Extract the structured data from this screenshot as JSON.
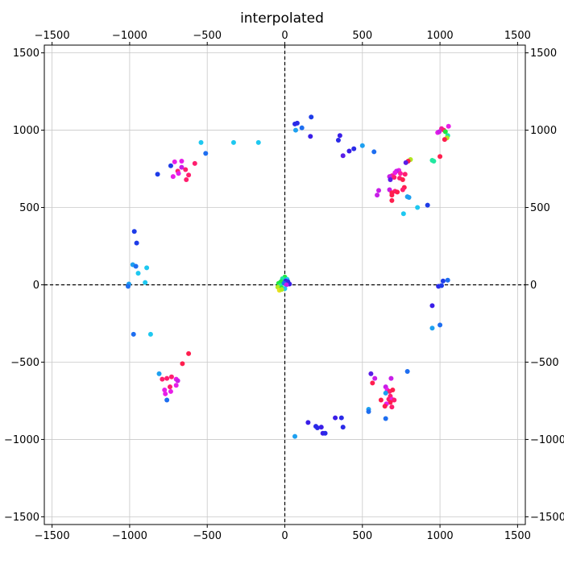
{
  "chart_data": {
    "type": "scatter",
    "title": "interpolated",
    "xlabel": "",
    "ylabel": "",
    "xlim": [
      -1550,
      1550
    ],
    "ylim": [
      -1550,
      1550
    ],
    "xticks": [
      -1500,
      -1000,
      -500,
      0,
      500,
      1000,
      1500
    ],
    "yticks": [
      -1500,
      -1000,
      -500,
      0,
      500,
      1000,
      1500
    ],
    "xtick_labels": [
      "−1500",
      "−1000",
      "−500",
      "0",
      "500",
      "1000",
      "1500"
    ],
    "ytick_labels": [
      "−1500",
      "−1000",
      "−500",
      "0",
      "500",
      "1000",
      "1500"
    ],
    "grid": true,
    "reference_lines": [
      {
        "axis": "x",
        "value": 0,
        "style": "dashed"
      },
      {
        "axis": "y",
        "value": 0,
        "style": "dashed"
      }
    ],
    "points": [
      {
        "x": 170,
        "y": 1085,
        "color": "#1e3ce8"
      },
      {
        "x": 65,
        "y": 1040,
        "color": "#2a2ae8"
      },
      {
        "x": 80,
        "y": 1045,
        "color": "#2a2ae8"
      },
      {
        "x": 110,
        "y": 1015,
        "color": "#1e6ef0"
      },
      {
        "x": 70,
        "y": 1000,
        "color": "#1ea0f0"
      },
      {
        "x": 165,
        "y": 960,
        "color": "#3a1ee8"
      },
      {
        "x": 355,
        "y": 965,
        "color": "#3a1ee8"
      },
      {
        "x": 345,
        "y": 935,
        "color": "#2a2ae8"
      },
      {
        "x": 375,
        "y": 835,
        "color": "#5a1ee8"
      },
      {
        "x": 415,
        "y": 865,
        "color": "#3a1ee8"
      },
      {
        "x": 445,
        "y": 880,
        "color": "#2a2ae8"
      },
      {
        "x": 500,
        "y": 900,
        "color": "#1ea0f0"
      },
      {
        "x": 575,
        "y": 860,
        "color": "#1e6ef0"
      },
      {
        "x": 1010,
        "y": 1010,
        "color": "#f01e9e"
      },
      {
        "x": 1025,
        "y": 1000,
        "color": "#ff1e6e"
      },
      {
        "x": 1055,
        "y": 1025,
        "color": "#e81ee8"
      },
      {
        "x": 985,
        "y": 985,
        "color": "#e81ee8"
      },
      {
        "x": 995,
        "y": 990,
        "color": "#c81ee8"
      },
      {
        "x": 1035,
        "y": 990,
        "color": "#20e840"
      },
      {
        "x": 1050,
        "y": 965,
        "color": "#20e8a0"
      },
      {
        "x": 1045,
        "y": 950,
        "color": "#b0e820"
      },
      {
        "x": 1030,
        "y": 940,
        "color": "#ff1e4e"
      },
      {
        "x": 1000,
        "y": 830,
        "color": "#ff1e4e"
      },
      {
        "x": 950,
        "y": 805,
        "color": "#20e8a0"
      },
      {
        "x": 960,
        "y": 800,
        "color": "#20e8a0"
      },
      {
        "x": 810,
        "y": 810,
        "color": "#b0e820"
      },
      {
        "x": 795,
        "y": 800,
        "color": "#ff1e4e"
      },
      {
        "x": 780,
        "y": 790,
        "color": "#5a1ee8"
      },
      {
        "x": 735,
        "y": 740,
        "color": "#e81ee8"
      },
      {
        "x": 720,
        "y": 735,
        "color": "#c81ee8"
      },
      {
        "x": 710,
        "y": 725,
        "color": "#e81ee8"
      },
      {
        "x": 745,
        "y": 720,
        "color": "#ff1e9e"
      },
      {
        "x": 775,
        "y": 715,
        "color": "#ff1e6e"
      },
      {
        "x": 690,
        "y": 705,
        "color": "#f01e9e"
      },
      {
        "x": 675,
        "y": 700,
        "color": "#c81ee8"
      },
      {
        "x": 705,
        "y": 695,
        "color": "#ff1e6e"
      },
      {
        "x": 740,
        "y": 690,
        "color": "#ff1e6e"
      },
      {
        "x": 760,
        "y": 680,
        "color": "#ff1e4e"
      },
      {
        "x": 680,
        "y": 680,
        "color": "#5a1ee8"
      },
      {
        "x": 770,
        "y": 630,
        "color": "#ff1e4e"
      },
      {
        "x": 760,
        "y": 615,
        "color": "#ff1e6e"
      },
      {
        "x": 675,
        "y": 615,
        "color": "#c81ee8"
      },
      {
        "x": 710,
        "y": 605,
        "color": "#ff1e6e"
      },
      {
        "x": 725,
        "y": 600,
        "color": "#ff1e4e"
      },
      {
        "x": 690,
        "y": 595,
        "color": "#ff1e4e"
      },
      {
        "x": 605,
        "y": 610,
        "color": "#c81ee8"
      },
      {
        "x": 595,
        "y": 580,
        "color": "#c81ee8"
      },
      {
        "x": 690,
        "y": 580,
        "color": "#ff1e4e"
      },
      {
        "x": 690,
        "y": 545,
        "color": "#ff1e4e"
      },
      {
        "x": 790,
        "y": 570,
        "color": "#1ea0f0"
      },
      {
        "x": 800,
        "y": 565,
        "color": "#1ea0f0"
      },
      {
        "x": 920,
        "y": 515,
        "color": "#1e3ce8"
      },
      {
        "x": 855,
        "y": 500,
        "color": "#1ec8f0"
      },
      {
        "x": 765,
        "y": 460,
        "color": "#1ec8f0"
      },
      {
        "x": -540,
        "y": 920,
        "color": "#1ec8f0"
      },
      {
        "x": -510,
        "y": 850,
        "color": "#1e6ef0"
      },
      {
        "x": -330,
        "y": 920,
        "color": "#1ec8f0"
      },
      {
        "x": -170,
        "y": 920,
        "color": "#1ec8f0"
      },
      {
        "x": -820,
        "y": 715,
        "color": "#1e3ce8"
      },
      {
        "x": -735,
        "y": 770,
        "color": "#1e3ce8"
      },
      {
        "x": -710,
        "y": 795,
        "color": "#e81ee8"
      },
      {
        "x": -665,
        "y": 800,
        "color": "#e81ee8"
      },
      {
        "x": -665,
        "y": 760,
        "color": "#c81ee8"
      },
      {
        "x": -690,
        "y": 735,
        "color": "#ff1e6e"
      },
      {
        "x": -685,
        "y": 720,
        "color": "#e81ee8"
      },
      {
        "x": -640,
        "y": 745,
        "color": "#ff1e6e"
      },
      {
        "x": -720,
        "y": 700,
        "color": "#e81ee8"
      },
      {
        "x": -620,
        "y": 710,
        "color": "#ff1e6e"
      },
      {
        "x": -635,
        "y": 680,
        "color": "#ff1e6e"
      },
      {
        "x": -580,
        "y": 785,
        "color": "#ff1e6e"
      },
      {
        "x": -970,
        "y": 345,
        "color": "#1e3ce8"
      },
      {
        "x": -955,
        "y": 270,
        "color": "#1e3ce8"
      },
      {
        "x": -980,
        "y": 130,
        "color": "#1ea0f0"
      },
      {
        "x": -960,
        "y": 120,
        "color": "#1e6ef0"
      },
      {
        "x": -890,
        "y": 110,
        "color": "#1ec8f0"
      },
      {
        "x": -945,
        "y": 75,
        "color": "#1ec8f0"
      },
      {
        "x": -900,
        "y": 15,
        "color": "#1ec8f0"
      },
      {
        "x": -1005,
        "y": 5,
        "color": "#1ea0f0"
      },
      {
        "x": -1010,
        "y": -10,
        "color": "#1e6ef0"
      },
      {
        "x": -975,
        "y": -320,
        "color": "#1e6ef0"
      },
      {
        "x": -865,
        "y": -320,
        "color": "#1ec8f0"
      },
      {
        "x": -810,
        "y": -575,
        "color": "#1ea0f0"
      },
      {
        "x": -620,
        "y": -445,
        "color": "#ff1e4e"
      },
      {
        "x": -660,
        "y": -510,
        "color": "#ff1e4e"
      },
      {
        "x": -730,
        "y": -595,
        "color": "#ff1e6e"
      },
      {
        "x": -760,
        "y": -605,
        "color": "#ff1e6e"
      },
      {
        "x": -790,
        "y": -610,
        "color": "#ff1e6e"
      },
      {
        "x": -700,
        "y": -610,
        "color": "#e81ee8"
      },
      {
        "x": -690,
        "y": -620,
        "color": "#c81ee8"
      },
      {
        "x": -740,
        "y": -660,
        "color": "#ff1e6e"
      },
      {
        "x": -700,
        "y": -650,
        "color": "#e81ee8"
      },
      {
        "x": -775,
        "y": -680,
        "color": "#e81ee8"
      },
      {
        "x": -735,
        "y": -690,
        "color": "#e81ee8"
      },
      {
        "x": -770,
        "y": -705,
        "color": "#e81ee8"
      },
      {
        "x": -760,
        "y": -745,
        "color": "#1e6ef0"
      },
      {
        "x": 150,
        "y": -890,
        "color": "#3a1ee8"
      },
      {
        "x": 200,
        "y": -915,
        "color": "#2a2ae8"
      },
      {
        "x": 210,
        "y": -925,
        "color": "#2a2ae8"
      },
      {
        "x": 235,
        "y": -920,
        "color": "#3a1ee8"
      },
      {
        "x": 245,
        "y": -960,
        "color": "#3a1ee8"
      },
      {
        "x": 260,
        "y": -960,
        "color": "#2a2ae8"
      },
      {
        "x": 325,
        "y": -860,
        "color": "#3a1ee8"
      },
      {
        "x": 365,
        "y": -860,
        "color": "#2a2ae8"
      },
      {
        "x": 375,
        "y": -920,
        "color": "#2a2ae8"
      },
      {
        "x": 65,
        "y": -980,
        "color": "#1ea0f0"
      },
      {
        "x": 540,
        "y": -805,
        "color": "#1ea0f0"
      },
      {
        "x": 540,
        "y": -820,
        "color": "#1e6ef0"
      },
      {
        "x": 555,
        "y": -575,
        "color": "#5a1ee8"
      },
      {
        "x": 580,
        "y": -605,
        "color": "#c81ee8"
      },
      {
        "x": 565,
        "y": -635,
        "color": "#ff1e4e"
      },
      {
        "x": 685,
        "y": -605,
        "color": "#c81ee8"
      },
      {
        "x": 650,
        "y": -660,
        "color": "#c81ee8"
      },
      {
        "x": 660,
        "y": -680,
        "color": "#e81ee8"
      },
      {
        "x": 675,
        "y": -690,
        "color": "#ff1e6e"
      },
      {
        "x": 695,
        "y": -680,
        "color": "#ff1e4e"
      },
      {
        "x": 650,
        "y": -700,
        "color": "#1ea0f0"
      },
      {
        "x": 620,
        "y": -745,
        "color": "#ff1e4e"
      },
      {
        "x": 680,
        "y": -720,
        "color": "#ff1e6e"
      },
      {
        "x": 670,
        "y": -740,
        "color": "#ff1e6e"
      },
      {
        "x": 690,
        "y": -740,
        "color": "#e81ee8"
      },
      {
        "x": 705,
        "y": -745,
        "color": "#ff1e6e"
      },
      {
        "x": 680,
        "y": -760,
        "color": "#ff1e4e"
      },
      {
        "x": 655,
        "y": -770,
        "color": "#e81ee8"
      },
      {
        "x": 645,
        "y": -785,
        "color": "#ff1e4e"
      },
      {
        "x": 690,
        "y": -790,
        "color": "#ff1e6e"
      },
      {
        "x": 650,
        "y": -865,
        "color": "#1e6ef0"
      },
      {
        "x": 790,
        "y": -560,
        "color": "#1e6ef0"
      },
      {
        "x": 1050,
        "y": 30,
        "color": "#1e6ef0"
      },
      {
        "x": 1020,
        "y": 25,
        "color": "#1e3ce8"
      },
      {
        "x": 990,
        "y": -10,
        "color": "#2a2ae8"
      },
      {
        "x": 1010,
        "y": -5,
        "color": "#1e3ce8"
      },
      {
        "x": 950,
        "y": -135,
        "color": "#3a1ee8"
      },
      {
        "x": 1000,
        "y": -260,
        "color": "#1e6ef0"
      },
      {
        "x": 950,
        "y": -280,
        "color": "#1ea0f0"
      },
      {
        "x": 0,
        "y": 50,
        "color": "#20e840"
      },
      {
        "x": -15,
        "y": 40,
        "color": "#20e8a0"
      },
      {
        "x": 15,
        "y": 35,
        "color": "#1ec8f0"
      },
      {
        "x": -25,
        "y": 20,
        "color": "#20e840"
      },
      {
        "x": 5,
        "y": 25,
        "color": "#3a1ee8"
      },
      {
        "x": 20,
        "y": 20,
        "color": "#2a2ae8"
      },
      {
        "x": -40,
        "y": 10,
        "color": "#20e840"
      },
      {
        "x": -5,
        "y": 10,
        "color": "#1e6ef0"
      },
      {
        "x": 30,
        "y": 5,
        "color": "#3a1ee8"
      },
      {
        "x": -30,
        "y": -5,
        "color": "#20e8a0"
      },
      {
        "x": 10,
        "y": 0,
        "color": "#c81ee8"
      },
      {
        "x": -45,
        "y": -15,
        "color": "#b0e820"
      },
      {
        "x": -20,
        "y": -20,
        "color": "#20e840"
      },
      {
        "x": 0,
        "y": -25,
        "color": "#1ec8f0"
      },
      {
        "x": -35,
        "y": -35,
        "color": "#e8e020"
      },
      {
        "x": -20,
        "y": -30,
        "color": "#b0e820"
      }
    ]
  }
}
